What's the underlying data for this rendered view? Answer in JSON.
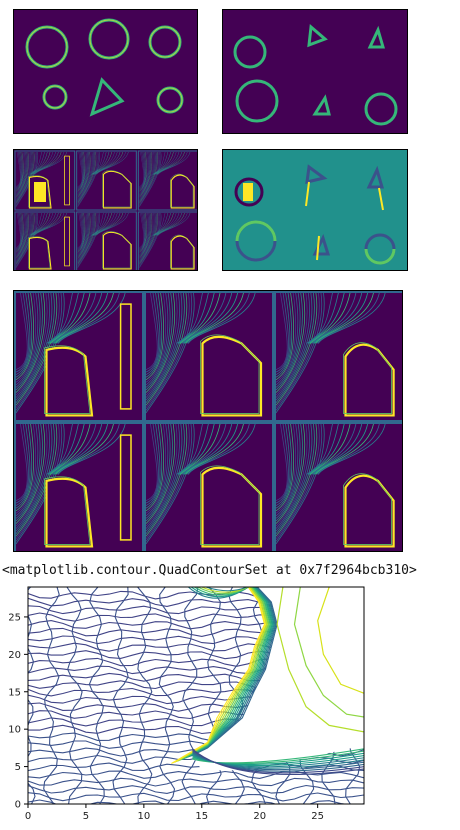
{
  "output": {
    "repr_text": "<matplotlib.contour.QuadContourSet at 0x7f2964bcb310>"
  },
  "colors": {
    "viridis_dark": "#440154",
    "viridis_blue": "#3b528b",
    "viridis_teal": "#21918c",
    "viridis_green": "#5ec962",
    "viridis_yellow": "#fde725"
  },
  "panels": [
    {
      "id": "mask-a",
      "kind": "shapes",
      "description_icon": "circles-triangle-icon"
    },
    {
      "id": "mask-b",
      "kind": "shapes",
      "description_icon": "circles-triangles-icon"
    },
    {
      "id": "field-grid-small",
      "kind": "contour-grid",
      "description_icon": "contour-grid-icon"
    },
    {
      "id": "gradient-field",
      "kind": "gradient",
      "description_icon": "gradient-shapes-icon"
    },
    {
      "id": "field-grid-large",
      "kind": "contour-grid",
      "description_icon": "contour-grid-icon"
    }
  ],
  "chart_data": {
    "type": "contour",
    "title": "",
    "xlabel": "",
    "ylabel": "",
    "xlim": [
      0,
      29
    ],
    "ylim": [
      0,
      29
    ],
    "x_ticks": [
      0,
      5,
      10,
      15,
      20,
      25
    ],
    "y_ticks": [
      0,
      5,
      10,
      15,
      20,
      25
    ],
    "grid": false,
    "legend": "none",
    "colormap": "viridis"
  }
}
